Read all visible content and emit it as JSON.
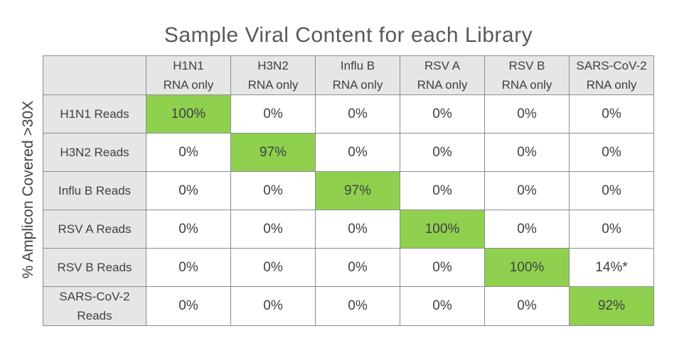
{
  "chart_data": {
    "type": "heatmap",
    "title": "Sample Viral Content for each Library",
    "ylabel": "% Amplicon Covered >30X",
    "columns": [
      [
        "H1N1",
        "RNA only"
      ],
      [
        "H3N2",
        "RNA only"
      ],
      [
        "Influ B",
        "RNA only"
      ],
      [
        "RSV A",
        "RNA only"
      ],
      [
        "RSV B",
        "RNA only"
      ],
      [
        "SARS-CoV-2",
        "RNA only"
      ]
    ],
    "rows": [
      [
        "H1N1 Reads"
      ],
      [
        "H3N2 Reads"
      ],
      [
        "Influ B Reads"
      ],
      [
        "RSV A Reads"
      ],
      [
        "RSV B Reads"
      ],
      [
        "SARS-CoV-2",
        "Reads"
      ]
    ],
    "cells": [
      [
        "100%",
        "0%",
        "0%",
        "0%",
        "0%",
        "0%"
      ],
      [
        "0%",
        "97%",
        "0%",
        "0%",
        "0%",
        "0%"
      ],
      [
        "0%",
        "0%",
        "97%",
        "0%",
        "0%",
        "0%"
      ],
      [
        "0%",
        "0%",
        "0%",
        "100%",
        "0%",
        "0%"
      ],
      [
        "0%",
        "0%",
        "0%",
        "0%",
        "100%",
        "14%*"
      ],
      [
        "0%",
        "0%",
        "0%",
        "0%",
        "0%",
        "92%"
      ]
    ],
    "values": [
      [
        100,
        0,
        0,
        0,
        0,
        0
      ],
      [
        0,
        97,
        0,
        0,
        0,
        0
      ],
      [
        0,
        0,
        97,
        0,
        0,
        0
      ],
      [
        0,
        0,
        0,
        100,
        0,
        0
      ],
      [
        0,
        0,
        0,
        0,
        100,
        14
      ],
      [
        0,
        0,
        0,
        0,
        0,
        92
      ]
    ],
    "highlighted": [
      [
        0,
        0
      ],
      [
        1,
        1
      ],
      [
        2,
        2
      ],
      [
        3,
        3
      ],
      [
        4,
        4
      ],
      [
        5,
        5
      ]
    ],
    "colors": {
      "highlight": "#8fd14f",
      "header_bg": "#e7e6e6",
      "cell_bg": "#ffffff",
      "border": "#8c8c8c",
      "text": "#404040",
      "title": "#595959"
    }
  }
}
